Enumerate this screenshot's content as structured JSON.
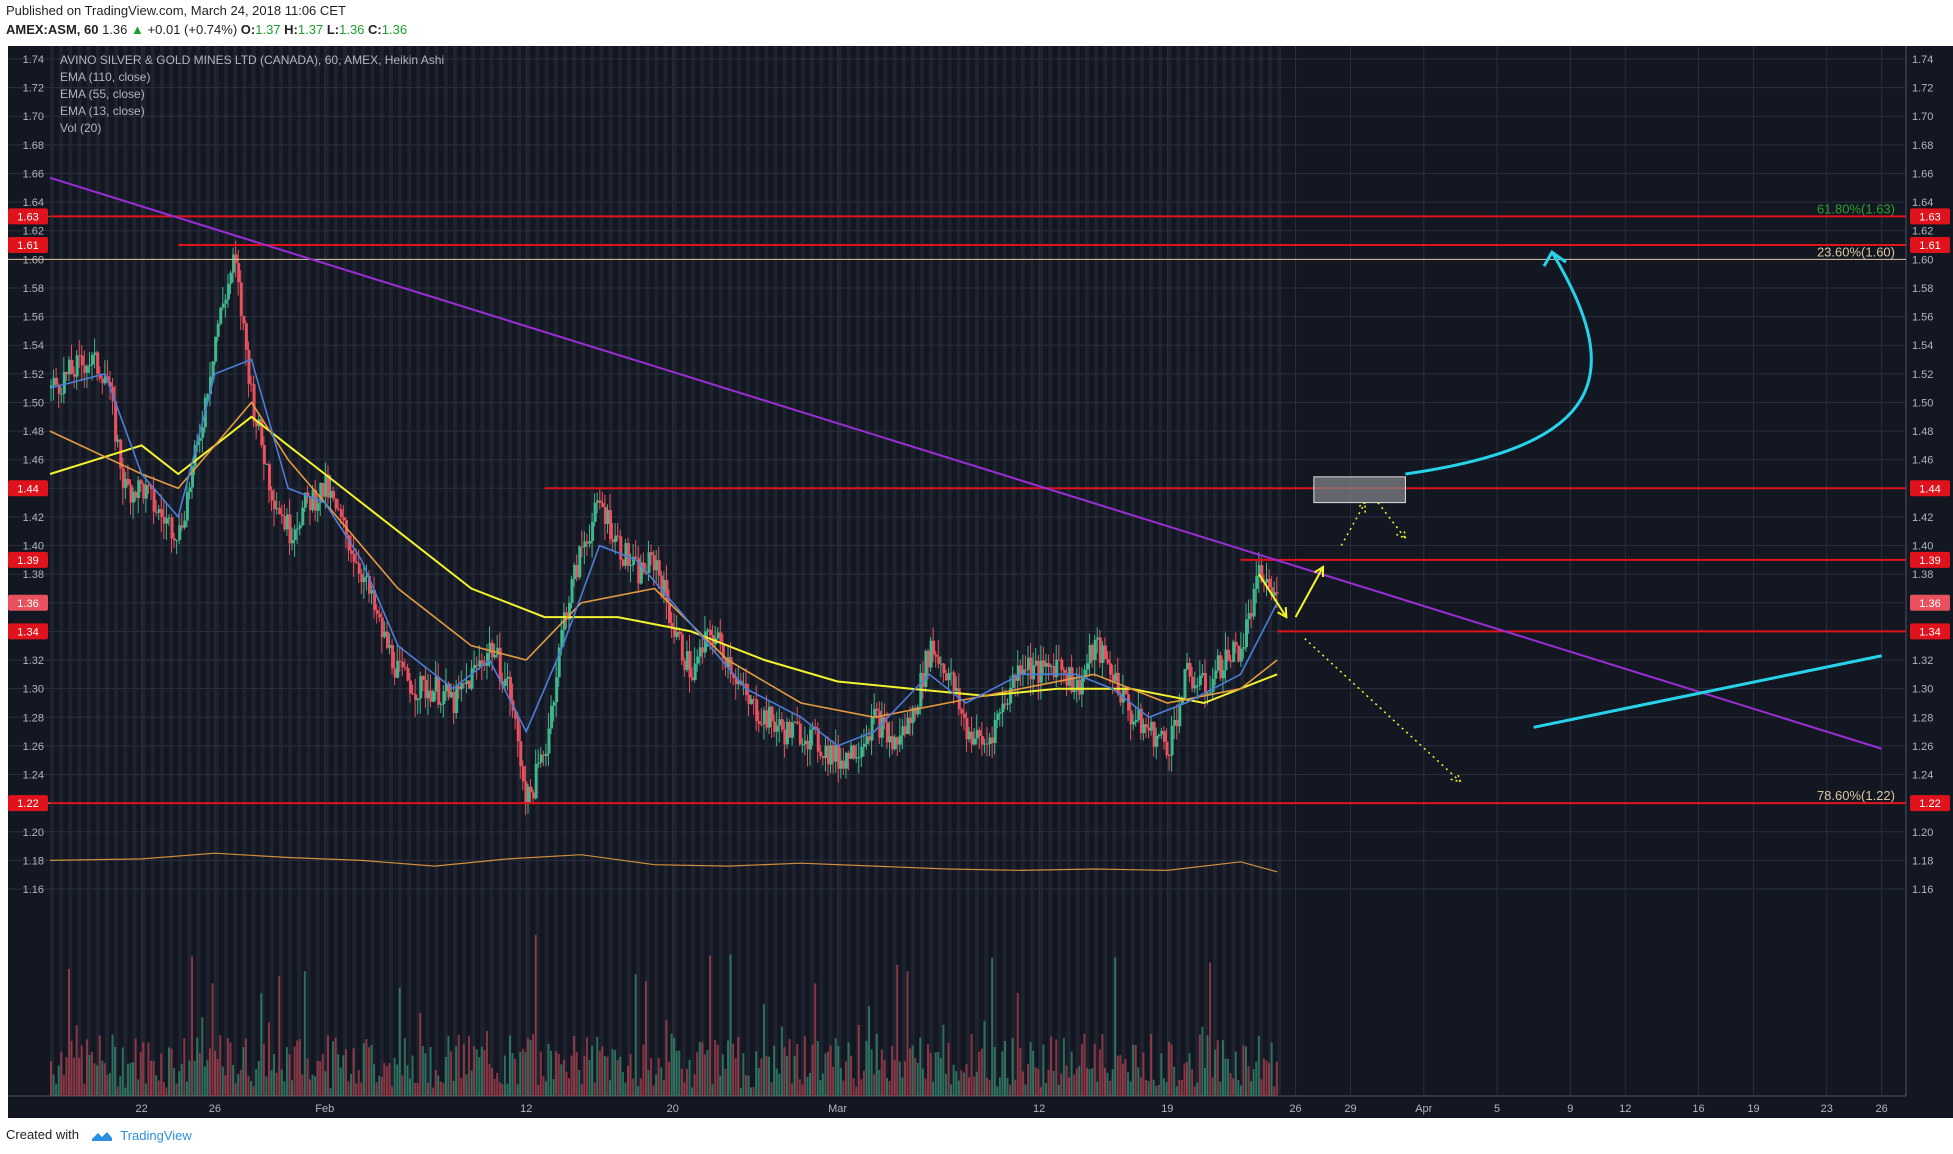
{
  "header": {
    "published": "Published on TradingView.com, March 24, 2018 11:06 CET",
    "symbol": "AMEX:ASM, 60",
    "last": "1.36",
    "arrow": "▲",
    "change": "+0.01 (+0.74%)",
    "o_label": "O:",
    "o_value": "1.37",
    "h_label": "H:",
    "h_value": "1.37",
    "l_label": "L:",
    "l_value": "1.36",
    "c_label": "C:",
    "c_value": "1.36"
  },
  "legend": {
    "title": "AVINO SILVER & GOLD MINES LTD (CANADA), 60, AMEX, Heikin Ashi",
    "studies": [
      "EMA (110, close)",
      "EMA (55, close)",
      "EMA (13, close)",
      "Vol (20)"
    ]
  },
  "footer": {
    "created_with": "Created with",
    "brand": "TradingView"
  },
  "colors": {
    "background": "#131722",
    "grid": "#2a2f3d",
    "text": "#b2b5be",
    "up_candle": "#3fb68b",
    "down_candle": "#e8515d",
    "ema110": "#f2f22e",
    "ema55": "#e59a3f",
    "ema13": "#4a7ed8",
    "trendline": "#9a2ed4",
    "level": "#e0121b",
    "projection": "#f5f524",
    "cyan": "#27d3ea",
    "fib_61": "#2ca02c",
    "fib_23": "#d9c6a0",
    "fib_78": "#d9c6a0"
  },
  "chart_data": {
    "type": "candlestick",
    "title": "AVINO SILVER & GOLD MINES LTD (CANADA), 60, AMEX, Heikin Ashi",
    "ylim": [
      1.15,
      1.75
    ],
    "y_ticks": [
      1.16,
      1.18,
      1.2,
      1.22,
      1.24,
      1.26,
      1.28,
      1.3,
      1.32,
      1.34,
      1.36,
      1.38,
      1.4,
      1.42,
      1.44,
      1.46,
      1.48,
      1.5,
      1.52,
      1.54,
      1.56,
      1.58,
      1.6,
      1.62,
      1.64,
      1.66,
      1.68,
      1.7,
      1.72,
      1.74
    ],
    "x_ticks": [
      {
        "label": "22",
        "day": 0
      },
      {
        "label": "26",
        "day": 4
      },
      {
        "label": "Feb",
        "day": 10
      },
      {
        "label": "12",
        "day": 21
      },
      {
        "label": "20",
        "day": 29
      },
      {
        "label": "Mar",
        "day": 38
      },
      {
        "label": "12",
        "day": 49
      },
      {
        "label": "19",
        "day": 56
      },
      {
        "label": "26",
        "day": 63
      },
      {
        "label": "29",
        "day": 66
      },
      {
        "label": "Apr",
        "day": 70
      },
      {
        "label": "5",
        "day": 74
      },
      {
        "label": "9",
        "day": 78
      },
      {
        "label": "12",
        "day": 81
      },
      {
        "label": "16",
        "day": 85
      },
      {
        "label": "19",
        "day": 88
      },
      {
        "label": "23",
        "day": 92
      },
      {
        "label": "26",
        "day": 95
      }
    ],
    "price_path": [
      [
        -5,
        1.51
      ],
      [
        -4,
        1.52
      ],
      [
        -3,
        1.53
      ],
      [
        -2,
        1.52
      ],
      [
        -1,
        1.44
      ],
      [
        0,
        1.44
      ],
      [
        1,
        1.42
      ],
      [
        2,
        1.41
      ],
      [
        3,
        1.47
      ],
      [
        4,
        1.55
      ],
      [
        5,
        1.6
      ],
      [
        6,
        1.5
      ],
      [
        7,
        1.44
      ],
      [
        8,
        1.41
      ],
      [
        9,
        1.43
      ],
      [
        10,
        1.44
      ],
      [
        11,
        1.41
      ],
      [
        12,
        1.38
      ],
      [
        13,
        1.34
      ],
      [
        14,
        1.31
      ],
      [
        15,
        1.3
      ],
      [
        16,
        1.3
      ],
      [
        17,
        1.29
      ],
      [
        18,
        1.31
      ],
      [
        19,
        1.33
      ],
      [
        20,
        1.3
      ],
      [
        21,
        1.22
      ],
      [
        22,
        1.26
      ],
      [
        23,
        1.35
      ],
      [
        24,
        1.4
      ],
      [
        25,
        1.43
      ],
      [
        26,
        1.4
      ],
      [
        27,
        1.38
      ],
      [
        28,
        1.39
      ],
      [
        29,
        1.34
      ],
      [
        30,
        1.31
      ],
      [
        31,
        1.34
      ],
      [
        32,
        1.32
      ],
      [
        33,
        1.29
      ],
      [
        34,
        1.28
      ],
      [
        35,
        1.27
      ],
      [
        36,
        1.27
      ],
      [
        37,
        1.26
      ],
      [
        38,
        1.25
      ],
      [
        39,
        1.26
      ],
      [
        40,
        1.28
      ],
      [
        41,
        1.26
      ],
      [
        42,
        1.28
      ],
      [
        43,
        1.33
      ],
      [
        44,
        1.31
      ],
      [
        45,
        1.27
      ],
      [
        46,
        1.26
      ],
      [
        47,
        1.29
      ],
      [
        48,
        1.32
      ],
      [
        49,
        1.31
      ],
      [
        50,
        1.32
      ],
      [
        51,
        1.3
      ],
      [
        52,
        1.33
      ],
      [
        53,
        1.31
      ],
      [
        54,
        1.28
      ],
      [
        55,
        1.27
      ],
      [
        56,
        1.26
      ],
      [
        57,
        1.31
      ],
      [
        58,
        1.3
      ],
      [
        59,
        1.32
      ],
      [
        60,
        1.33
      ],
      [
        61,
        1.38
      ],
      [
        62,
        1.36
      ]
    ],
    "ema110": [
      [
        -5,
        1.45
      ],
      [
        0,
        1.47
      ],
      [
        2,
        1.45
      ],
      [
        4,
        1.47
      ],
      [
        6,
        1.49
      ],
      [
        8,
        1.47
      ],
      [
        10,
        1.45
      ],
      [
        14,
        1.41
      ],
      [
        18,
        1.37
      ],
      [
        22,
        1.35
      ],
      [
        26,
        1.35
      ],
      [
        30,
        1.34
      ],
      [
        34,
        1.32
      ],
      [
        38,
        1.305
      ],
      [
        42,
        1.3
      ],
      [
        46,
        1.295
      ],
      [
        50,
        1.3
      ],
      [
        54,
        1.3
      ],
      [
        58,
        1.29
      ],
      [
        62,
        1.31
      ]
    ],
    "ema55": [
      [
        -5,
        1.48
      ],
      [
        0,
        1.45
      ],
      [
        2,
        1.44
      ],
      [
        4,
        1.47
      ],
      [
        6,
        1.5
      ],
      [
        8,
        1.46
      ],
      [
        10,
        1.43
      ],
      [
        14,
        1.37
      ],
      [
        18,
        1.33
      ],
      [
        21,
        1.32
      ],
      [
        24,
        1.36
      ],
      [
        28,
        1.37
      ],
      [
        32,
        1.32
      ],
      [
        36,
        1.29
      ],
      [
        40,
        1.28
      ],
      [
        44,
        1.29
      ],
      [
        48,
        1.3
      ],
      [
        52,
        1.31
      ],
      [
        56,
        1.29
      ],
      [
        60,
        1.3
      ],
      [
        62,
        1.32
      ]
    ],
    "ema13": [
      [
        -5,
        1.51
      ],
      [
        -2,
        1.52
      ],
      [
        0,
        1.45
      ],
      [
        2,
        1.42
      ],
      [
        4,
        1.52
      ],
      [
        6,
        1.53
      ],
      [
        8,
        1.44
      ],
      [
        10,
        1.43
      ],
      [
        12,
        1.39
      ],
      [
        14,
        1.33
      ],
      [
        17,
        1.3
      ],
      [
        19,
        1.32
      ],
      [
        21,
        1.27
      ],
      [
        23,
        1.33
      ],
      [
        25,
        1.4
      ],
      [
        27,
        1.39
      ],
      [
        29,
        1.36
      ],
      [
        31,
        1.33
      ],
      [
        33,
        1.3
      ],
      [
        36,
        1.28
      ],
      [
        38,
        1.26
      ],
      [
        40,
        1.27
      ],
      [
        43,
        1.31
      ],
      [
        45,
        1.29
      ],
      [
        48,
        1.31
      ],
      [
        51,
        1.31
      ],
      [
        53,
        1.3
      ],
      [
        55,
        1.28
      ],
      [
        57,
        1.29
      ],
      [
        60,
        1.31
      ],
      [
        62,
        1.36
      ]
    ],
    "volume_ema": [
      [
        -5,
        1.18
      ],
      [
        0,
        1.181
      ],
      [
        4,
        1.185
      ],
      [
        8,
        1.182
      ],
      [
        12,
        1.18
      ],
      [
        16,
        1.176
      ],
      [
        20,
        1.181
      ],
      [
        24,
        1.184
      ],
      [
        28,
        1.177
      ],
      [
        32,
        1.176
      ],
      [
        36,
        1.178
      ],
      [
        40,
        1.176
      ],
      [
        44,
        1.174
      ],
      [
        48,
        1.173
      ],
      [
        52,
        1.174
      ],
      [
        56,
        1.173
      ],
      [
        60,
        1.179
      ],
      [
        62,
        1.172
      ]
    ],
    "horizontal_levels": [
      {
        "price": 1.63,
        "label": "1.63",
        "from_day": -5
      },
      {
        "price": 1.61,
        "label": "1.61",
        "from_day": 2
      },
      {
        "price": 1.44,
        "label": "1.44",
        "from_day": 22
      },
      {
        "price": 1.39,
        "label": "1.39",
        "from_day": 60
      },
      {
        "price": 1.34,
        "label": "1.34",
        "from_day": 62
      },
      {
        "price": 1.22,
        "label": "1.22",
        "from_day": -5
      }
    ],
    "current_price": {
      "price": 1.36,
      "label": "1.36"
    },
    "fib_levels": [
      {
        "price": 1.63,
        "label": "61.80%(1.63)",
        "color": "#2ca02c"
      },
      {
        "price": 1.6,
        "label": "23.60%(1.60)",
        "color": "#d9c6a0"
      },
      {
        "price": 1.22,
        "label": "78.60%(1.22)",
        "color": "#d9c6a0"
      }
    ],
    "trendline": {
      "from": [
        -5,
        1.657
      ],
      "to": [
        95,
        1.258
      ]
    },
    "support_line": {
      "from": [
        76,
        1.273
      ],
      "to": [
        95,
        1.323
      ]
    },
    "projection_box": {
      "day_from": 64,
      "day_to": 69,
      "price_low": 1.43,
      "price_high": 1.448
    },
    "projections": [
      {
        "path": [
          [
            61,
            1.38
          ],
          [
            62.5,
            1.35
          ]
        ],
        "style": "solid"
      },
      {
        "path": [
          [
            63,
            1.35
          ],
          [
            64.5,
            1.385
          ]
        ],
        "style": "solid"
      },
      {
        "path": [
          [
            65.5,
            1.4
          ],
          [
            66.8,
            1.43
          ]
        ],
        "style": "dotted"
      },
      {
        "path": [
          [
            67.5,
            1.43
          ],
          [
            69,
            1.405
          ]
        ],
        "style": "dotted"
      },
      {
        "path": [
          [
            63.5,
            1.335
          ],
          [
            72,
            1.235
          ]
        ],
        "style": "dotted"
      }
    ],
    "breakout_arrow": {
      "start": [
        69,
        1.45
      ],
      "control1": [
        80,
        1.47
      ],
      "control2": [
        81,
        1.52
      ],
      "end": [
        77,
        1.605
      ]
    }
  }
}
